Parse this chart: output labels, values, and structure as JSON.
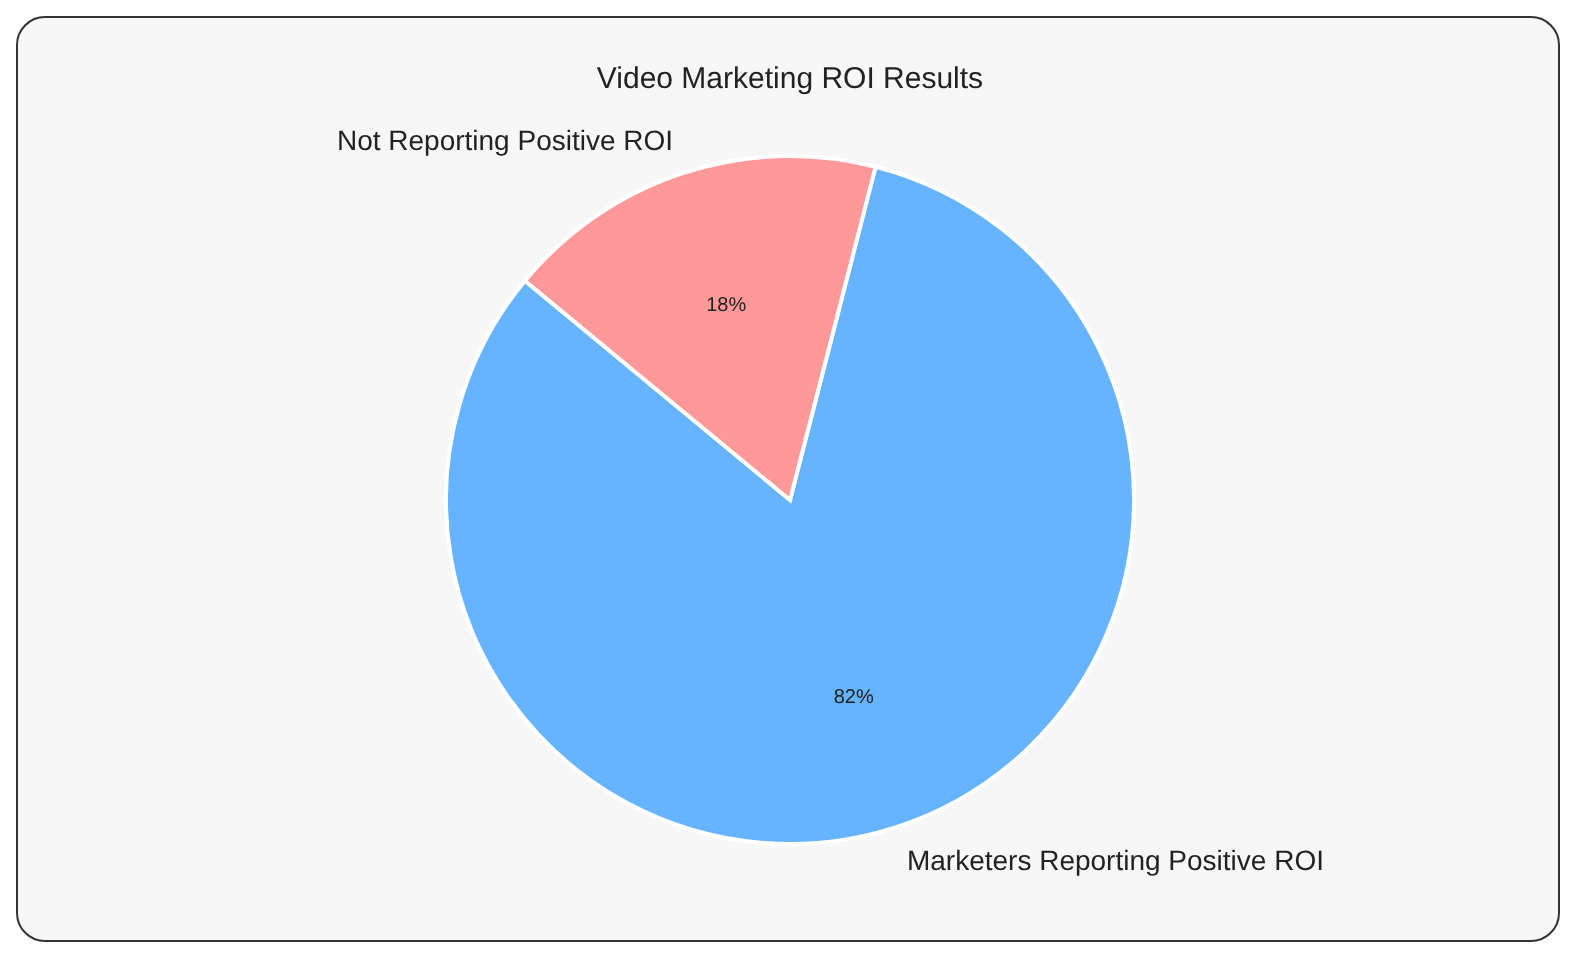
{
  "chart_data": {
    "type": "pie",
    "title": "Video Marketing ROI Results",
    "categories": [
      "Marketers Reporting Positive ROI",
      "Not Reporting Positive ROI"
    ],
    "values": [
      82,
      18
    ],
    "colors": [
      "#66b3ff",
      "#ff9999"
    ],
    "value_labels": [
      "82%",
      "18%"
    ]
  }
}
